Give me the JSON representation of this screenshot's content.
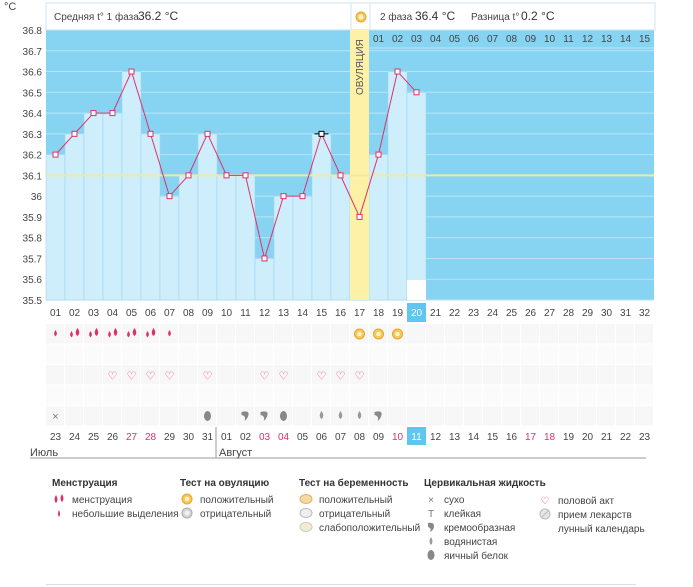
{
  "header": {
    "unit": "°C",
    "phase1_label": "Средняя t° 1 фаза",
    "phase1_value": "36.2 °C",
    "phase2_label": "2 фаза",
    "phase2_value": "36.4 °C",
    "diff_label": "Разница t°",
    "diff_value": "0.2 °C",
    "ovulation_label": "ОВУЛЯЦИЯ"
  },
  "colors": {
    "plot_blue": "#87d3f2",
    "bar_fill": "#cfeefc",
    "line": "#e0306a",
    "marker": "#e0306a",
    "ovulation_band": "#fcf1a6",
    "coverline": "#f3e9a0",
    "highlight_cell": "#5ec6ef"
  },
  "chart_data": {
    "type": "line",
    "title": "",
    "ylabel": "°C",
    "ylim": [
      35.5,
      36.8
    ],
    "yticks": [
      "36.8",
      "36.7",
      "36.6",
      "36.5",
      "36.4",
      "36.3",
      "36.2",
      "36.1",
      "36",
      "35.9",
      "35.8",
      "35.7",
      "35.6",
      "35.5"
    ],
    "cycle_days": [
      "01",
      "02",
      "03",
      "04",
      "05",
      "06",
      "07",
      "08",
      "09",
      "10",
      "11",
      "12",
      "13",
      "14",
      "15",
      "16",
      "17",
      "18",
      "19",
      "20",
      "21",
      "22",
      "23",
      "24",
      "25",
      "26",
      "27",
      "28",
      "29",
      "30",
      "31",
      "32"
    ],
    "temperatures": [
      36.2,
      36.3,
      36.4,
      36.4,
      36.6,
      36.3,
      36.0,
      36.1,
      36.3,
      36.1,
      36.1,
      35.7,
      36.0,
      36.0,
      36.3,
      36.1,
      35.9,
      36.2,
      36.6,
      36.5
    ],
    "selected_day": "15",
    "today_day": "20",
    "ovulation_day": "17",
    "coverline": 36.1,
    "phase2_day_labels": [
      "01",
      "02",
      "03",
      "04",
      "05",
      "06",
      "07",
      "08",
      "09",
      "10",
      "11",
      "12",
      "13",
      "14",
      "15"
    ],
    "dates": [
      "23",
      "24",
      "25",
      "26",
      "27",
      "28",
      "29",
      "30",
      "31",
      "01",
      "02",
      "03",
      "04",
      "05",
      "06",
      "07",
      "08",
      "09",
      "10",
      "11",
      "12",
      "13",
      "14",
      "15",
      "16",
      "17",
      "18",
      "19",
      "20",
      "21",
      "22",
      "23"
    ],
    "red_dates": [
      4,
      5,
      11,
      12,
      18,
      25,
      26
    ],
    "today_date_index": 19,
    "month_left": "Июль",
    "month_right": "Август",
    "markers": {
      "menstruation": [
        2,
        3,
        3,
        3,
        3,
        3,
        2,
        0,
        0,
        0,
        0,
        0,
        0,
        0,
        0,
        0,
        0,
        0,
        0,
        0
      ],
      "ovulation_positive": [
        0,
        0,
        0,
        0,
        0,
        0,
        0,
        0,
        0,
        0,
        0,
        0,
        0,
        0,
        0,
        0,
        1,
        1,
        1,
        0
      ],
      "intercourse": [
        0,
        0,
        0,
        1,
        1,
        1,
        1,
        0,
        1,
        0,
        0,
        1,
        1,
        0,
        1,
        1,
        1,
        0,
        0,
        0
      ],
      "cervical": [
        "dry",
        "",
        "",
        "",
        "",
        "",
        "",
        "",
        "egg",
        "",
        "creamy",
        "creamy",
        "egg",
        "",
        "watery",
        "watery",
        "watery",
        "creamy",
        "",
        ""
      ],
      "moon_calendar_day": 20
    }
  },
  "legend": {
    "menstruation": {
      "title": "Менструация",
      "items": [
        "менструация",
        "небольшие выделения"
      ]
    },
    "ovulation_test": {
      "title": "Тест на овуляцию",
      "items": [
        "положительный",
        "отрицательный"
      ]
    },
    "pregnancy_test": {
      "title": "Тест на беременность",
      "items": [
        "положительный",
        "отрицательный",
        "слабоположительный"
      ]
    },
    "cervical": {
      "title": "Цервикальная жидкость",
      "items": [
        "сухо",
        "клейкая",
        "кремообразная",
        "водянистая",
        "яичный белок"
      ]
    },
    "other": {
      "items": [
        "половой акт",
        "прием лекарств",
        "лунный календарь"
      ]
    }
  }
}
